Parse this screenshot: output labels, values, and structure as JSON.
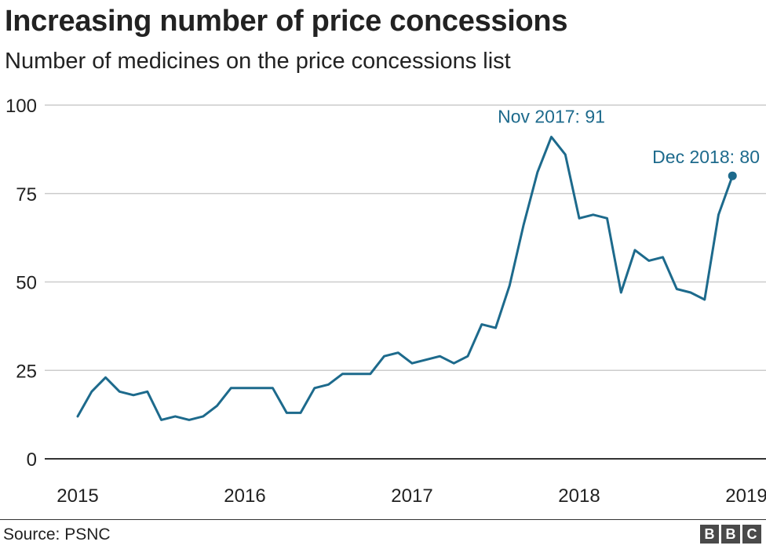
{
  "header": {
    "title": "Increasing number of price concessions",
    "subtitle": "Number of medicines on the price concessions list"
  },
  "footer": {
    "source": "Source: PSNC",
    "logo": [
      "B",
      "B",
      "C"
    ]
  },
  "colors": {
    "line": "#1d6a8c",
    "grid": "#cccccc",
    "axis": "#333333",
    "text": "#222222"
  },
  "chart_data": {
    "type": "line",
    "title": "Increasing number of price concessions",
    "subtitle": "Number of medicines on the price concessions list",
    "xlabel": "",
    "ylabel": "",
    "ylim": [
      0,
      100
    ],
    "yticks": [
      0,
      25,
      50,
      75,
      100
    ],
    "xticks": [
      "2015",
      "2016",
      "2017",
      "2018",
      "2019"
    ],
    "grid": "horizontal",
    "series": [
      {
        "x": [
          "2015-01",
          "2015-02",
          "2015-03",
          "2015-04",
          "2015-05",
          "2015-06",
          "2015-07",
          "2015-08",
          "2015-09",
          "2015-10",
          "2015-11",
          "2015-12",
          "2016-01",
          "2016-02",
          "2016-03",
          "2016-04",
          "2016-05",
          "2016-06",
          "2016-07",
          "2016-08",
          "2016-09",
          "2016-10",
          "2016-11",
          "2016-12",
          "2017-01",
          "2017-02",
          "2017-03",
          "2017-04",
          "2017-05",
          "2017-06",
          "2017-07",
          "2017-08",
          "2017-09",
          "2017-10",
          "2017-11",
          "2017-12",
          "2018-01",
          "2018-02",
          "2018-03",
          "2018-04",
          "2018-05",
          "2018-06",
          "2018-07",
          "2018-08",
          "2018-09",
          "2018-10",
          "2018-11",
          "2018-12"
        ],
        "values": [
          12,
          19,
          23,
          19,
          18,
          19,
          11,
          12,
          11,
          12,
          15,
          20,
          20,
          20,
          20,
          13,
          13,
          20,
          21,
          24,
          24,
          24,
          29,
          30,
          27,
          28,
          29,
          27,
          29,
          38,
          37,
          49,
          66,
          81,
          91,
          86,
          68,
          69,
          68,
          47,
          59,
          56,
          57,
          48,
          47,
          45,
          69,
          80
        ]
      }
    ],
    "annotations": [
      {
        "x": "2017-11",
        "y": 91,
        "text": "Nov 2017: 91"
      },
      {
        "x": "2018-12",
        "y": 80,
        "text": "Dec 2018: 80"
      }
    ]
  }
}
